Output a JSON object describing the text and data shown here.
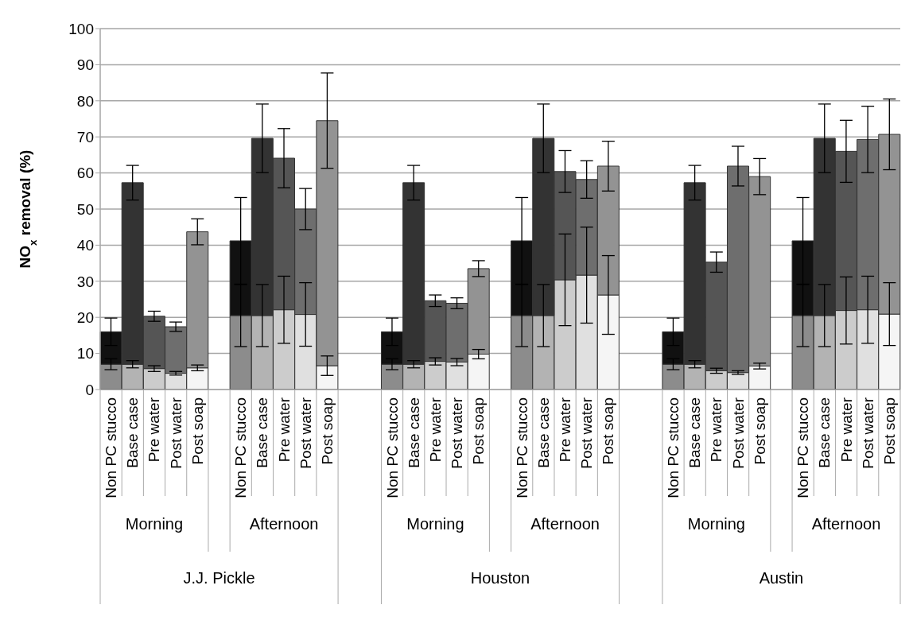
{
  "chart_data": {
    "type": "bar",
    "stacked": true,
    "ylabel": "NO$_{x}$ removal (%)",
    "categories": [
      "Non PC stucco",
      "Base case",
      "Pre water",
      "Post water",
      "Post soap",
      null,
      "Non PC stucco",
      "Base case",
      "Pre water",
      "Post water",
      "Post soap",
      null,
      null,
      "Non PC stucco",
      "Base case",
      "Pre water",
      "Post water",
      "Post soap",
      null,
      "Non PC stucco",
      "Base case",
      "Pre water",
      "Post water",
      "Post soap",
      null,
      null,
      "Non PC stucco",
      "Base case",
      "Pre water",
      "Post water",
      "Post soap",
      null,
      "Non PC stucco",
      "Base case",
      "Pre water",
      "Post water",
      "Post soap"
    ],
    "series": [
      {
        "colors": [
          "#8c8c8c",
          "#b3b3b3",
          "#cccccc",
          "#e0e0e0",
          "#f5f5f5",
          null,
          "#8c8c8c",
          "#b3b3b3",
          "#cccccc",
          "#e0e0e0",
          "#f5f5f5",
          null,
          null,
          "#8c8c8c",
          "#b3b3b3",
          "#cccccc",
          "#e0e0e0",
          "#f5f5f5",
          null,
          "#8c8c8c",
          "#b3b3b3",
          "#cccccc",
          "#e0e0e0",
          "#f5f5f5",
          null,
          null,
          "#8c8c8c",
          "#b3b3b3",
          "#cccccc",
          "#e0e0e0",
          "#f5f5f5",
          null,
          "#8c8c8c",
          "#b3b3b3",
          "#cccccc",
          "#e0e0e0",
          "#f5f5f5"
        ],
        "values": [
          7,
          7,
          5.8,
          4.5,
          6,
          null,
          20.5,
          20.5,
          22.1,
          20.8,
          6.6,
          null,
          null,
          7,
          7,
          7.8,
          7.6,
          9.8,
          null,
          20.5,
          20.5,
          30.4,
          31.7,
          26.2,
          null,
          null,
          7,
          7,
          5.2,
          4.7,
          6.5,
          null,
          20.5,
          20.5,
          21.9,
          22.1,
          20.9
        ],
        "errors": [
          1.5,
          1,
          0.8,
          0.5,
          0.8,
          null,
          8.6,
          8.6,
          9.3,
          8.8,
          2.7,
          null,
          null,
          1.5,
          1,
          1,
          1,
          1.3,
          null,
          8.6,
          8.6,
          12.7,
          13.3,
          10.9,
          null,
          null,
          1.5,
          1,
          0.7,
          0.5,
          0.8,
          null,
          8.6,
          8.6,
          9.3,
          9.3,
          8.7
        ]
      },
      {
        "colors": [
          "#111111",
          "#333333",
          "#555555",
          "#6e6e6e",
          "#939393",
          null,
          "#111111",
          "#333333",
          "#555555",
          "#6e6e6e",
          "#939393",
          null,
          null,
          "#111111",
          "#333333",
          "#555555",
          "#6e6e6e",
          "#939393",
          null,
          "#111111",
          "#333333",
          "#555555",
          "#6e6e6e",
          "#939393",
          null,
          null,
          "#111111",
          "#333333",
          "#555555",
          "#6e6e6e",
          "#939393",
          null,
          "#111111",
          "#333333",
          "#555555",
          "#6e6e6e",
          "#939393"
        ],
        "values": [
          9,
          50.3,
          14.5,
          12.9,
          37.7,
          null,
          20.7,
          49.1,
          42,
          29.2,
          67.9,
          null,
          null,
          9,
          50.3,
          16.8,
          16.3,
          23.7,
          null,
          20.7,
          49.1,
          30,
          26.5,
          35.7,
          null,
          null,
          9,
          50.3,
          30.1,
          57.2,
          52.5,
          null,
          20.7,
          49.1,
          44.1,
          47.2,
          49.8
        ],
        "errors": [
          3.8,
          4.8,
          1.4,
          1.3,
          3.6,
          null,
          12,
          9.5,
          8.2,
          5.7,
          13.2,
          null,
          null,
          3.8,
          4.8,
          1.6,
          1.5,
          2.2,
          null,
          12,
          9.5,
          5.8,
          5.2,
          6.9,
          null,
          null,
          3.8,
          4.8,
          2.8,
          5.5,
          5,
          null,
          12,
          9.5,
          8.6,
          9.2,
          9.8
        ]
      }
    ],
    "ylim": [
      0,
      100
    ],
    "yticks": [
      0,
      10,
      20,
      30,
      40,
      50,
      60,
      70,
      80,
      90,
      100
    ],
    "grid": "y",
    "legend": false,
    "annotations": [
      "Morning",
      "Afternoon",
      "Morning",
      "Afternoon",
      "Morning",
      "Afternoon",
      "J.J. Pickle",
      "Houston",
      "Austin"
    ]
  }
}
